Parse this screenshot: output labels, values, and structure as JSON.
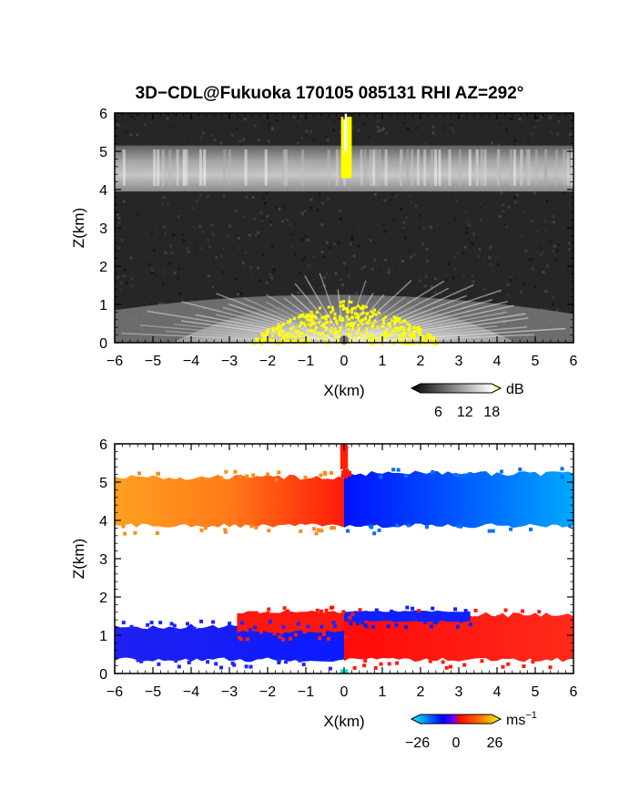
{
  "title": "3D−CDL@Fukuoka 170105 085131 RHI AZ=292°",
  "chart_data": [
    {
      "type": "heatmap",
      "name": "backscatter",
      "xlabel": "X(km)",
      "ylabel": "Z(km)",
      "xlim": [
        -6,
        6
      ],
      "ylim": [
        0,
        6
      ],
      "x_ticks": [
        "−6",
        "−5",
        "−4",
        "−3",
        "−2",
        "−1",
        "0",
        "1",
        "2",
        "3",
        "4",
        "5",
        "6"
      ],
      "y_ticks": [
        "0",
        "1",
        "2",
        "3",
        "4",
        "5",
        "6"
      ],
      "colorbar": {
        "unit": "dB",
        "ticks": [
          "6",
          "12",
          "18"
        ],
        "tick_values": [
          6,
          12,
          18
        ],
        "range": [
          0,
          20
        ],
        "colors": [
          "#000000",
          "#ffffff",
          "#ffff00"
        ]
      },
      "layers": [
        {
          "z_bottom": 3.95,
          "z_top": 5.15,
          "level_db": 10
        },
        {
          "z_bottom": 0.0,
          "z_top": 1.7,
          "level_db": 8
        },
        {
          "z_bottom": 0.0,
          "z_top": 1.15,
          "level_db": 19,
          "x_range": [
            -2.4,
            2.4
          ]
        },
        {
          "z_bottom": 4.3,
          "z_top": 5.9,
          "level_db": 19,
          "x_range": [
            -0.08,
            0.2
          ]
        }
      ]
    },
    {
      "type": "heatmap",
      "name": "doppler-velocity",
      "xlabel": "X(km)",
      "ylabel": "Z(km)",
      "xlim": [
        -6,
        6
      ],
      "ylim": [
        0,
        6
      ],
      "x_ticks": [
        "−6",
        "−5",
        "−4",
        "−3",
        "−2",
        "−1",
        "0",
        "1",
        "2",
        "3",
        "4",
        "5",
        "6"
      ],
      "y_ticks": [
        "0",
        "1",
        "2",
        "3",
        "4",
        "5",
        "6"
      ],
      "colorbar": {
        "unit": "ms",
        "unit_exponent": "−1",
        "ticks": [
          "−26",
          "0",
          "26"
        ],
        "tick_values": [
          -26,
          0,
          26
        ],
        "range": [
          -30,
          30
        ],
        "colors": [
          "#00ffff",
          "#0000ff",
          "#ff0000",
          "#ffff00"
        ]
      },
      "regions": [
        {
          "x": [
            -6.0,
            0.0
          ],
          "z": [
            3.8,
            5.2
          ],
          "velocity_ms": [
            12,
            2
          ]
        },
        {
          "x": [
            0.0,
            6.0
          ],
          "z": [
            3.8,
            5.3
          ],
          "velocity_ms": [
            -4,
            -14
          ]
        },
        {
          "x": [
            -0.1,
            0.1
          ],
          "z": [
            5.3,
            6.0
          ],
          "velocity_ms": [
            4,
            4
          ]
        },
        {
          "x": [
            -6.0,
            0.0
          ],
          "z": [
            0.3,
            1.3
          ],
          "velocity_ms": [
            -4,
            -4
          ]
        },
        {
          "x": [
            0.0,
            6.0
          ],
          "z": [
            0.3,
            1.6
          ],
          "velocity_ms": [
            4,
            4
          ]
        },
        {
          "x": [
            -2.8,
            0.0
          ],
          "z": [
            1.05,
            1.65
          ],
          "velocity_ms": [
            4,
            4
          ]
        },
        {
          "x": [
            0.0,
            3.3
          ],
          "z": [
            1.35,
            1.65
          ],
          "velocity_ms": [
            -4,
            -4
          ]
        },
        {
          "x": [
            -0.1,
            0.1
          ],
          "z": [
            0.0,
            0.12
          ],
          "velocity_ms": [
            -28,
            -28
          ]
        }
      ]
    }
  ]
}
